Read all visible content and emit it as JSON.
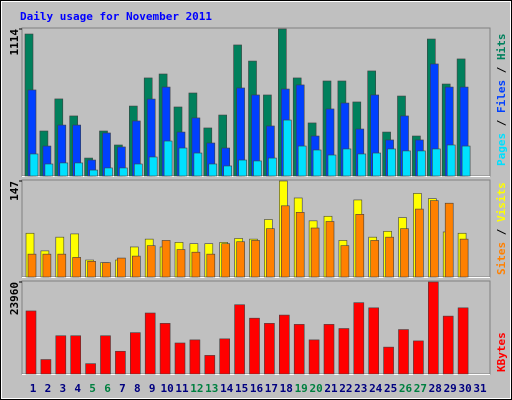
{
  "chart_data": [
    {
      "type": "bar",
      "title": "Daily usage for November 2011",
      "ylim": [
        0,
        1114
      ],
      "yticks": [
        1114
      ],
      "legend_separator": " / ",
      "series": [
        {
          "name": "Pages",
          "color": "#00e0ff",
          "values": [
            167,
            91,
            99,
            99,
            45,
            61,
            61,
            91,
            144,
            265,
            212,
            174,
            91,
            76,
            121,
            114,
            136,
            424,
            227,
            197,
            159,
            205,
            167,
            174,
            205,
            190,
            190,
            205,
            235,
            227,
            null
          ]
        },
        {
          "name": "Files",
          "color": "#0040ff",
          "values": [
            652,
            227,
            386,
            386,
            121,
            326,
            220,
            417,
            583,
            674,
            333,
            440,
            250,
            212,
            667,
            614,
            379,
            659,
            690,
            303,
            508,
            553,
            356,
            614,
            273,
            455,
            273,
            849,
            674,
            674,
            null
          ]
        },
        {
          "name": "Hits",
          "color": "#00805c",
          "values": [
            1076,
            341,
            584,
            455,
            136,
            341,
            235,
            530,
            743,
            773,
            523,
            629,
            364,
            462,
            993,
            871,
            614,
            1114,
            743,
            402,
            720,
            720,
            561,
            796,
            333,
            606,
            303,
            1038,
            697,
            887,
            null
          ]
        }
      ]
    },
    {
      "type": "bar",
      "ylim": [
        0,
        147
      ],
      "yticks": [
        147
      ],
      "legend_separator": " / ",
      "series": [
        {
          "name": "Sites",
          "color": "#ff8000",
          "values": [
            35,
            35,
            35,
            30,
            24,
            22,
            29,
            32,
            48,
            56,
            42,
            38,
            35,
            51,
            54,
            56,
            74,
            109,
            99,
            75,
            85,
            48,
            96,
            56,
            61,
            74,
            104,
            117,
            113,
            58,
            null
          ]
        },
        {
          "name": "Visits",
          "color": "#ffff00",
          "values": [
            67,
            40,
            61,
            66,
            26,
            22,
            26,
            46,
            58,
            46,
            53,
            51,
            51,
            53,
            59,
            58,
            88,
            147,
            121,
            86,
            93,
            56,
            118,
            61,
            70,
            91,
            128,
            120,
            69,
            67,
            null
          ]
        }
      ]
    },
    {
      "type": "bar",
      "ylim": [
        0,
        23960
      ],
      "yticks": [
        23960
      ],
      "categories": [
        "1",
        "2",
        "3",
        "4",
        "5",
        "6",
        "7",
        "8",
        "9",
        "10",
        "11",
        "12",
        "13",
        "14",
        "15",
        "16",
        "17",
        "18",
        "19",
        "20",
        "21",
        "22",
        "23",
        "24",
        "25",
        "26",
        "27",
        "28",
        "29",
        "30",
        "31"
      ],
      "category_colors": [
        "#000080",
        "#000080",
        "#000080",
        "#000080",
        "#008040",
        "#008040",
        "#000080",
        "#000080",
        "#000080",
        "#000080",
        "#000080",
        "#008040",
        "#008040",
        "#000080",
        "#000080",
        "#000080",
        "#000080",
        "#000080",
        "#008040",
        "#008040",
        "#000080",
        "#000080",
        "#000080",
        "#000080",
        "#000080",
        "#008040",
        "#008040",
        "#000080",
        "#000080",
        "#000080",
        "#000080"
      ],
      "series": [
        {
          "name": "KBytes",
          "color": "#ff0000",
          "values": [
            16421,
            3769,
            9960,
            9960,
            2692,
            9960,
            5922,
            10768,
            15883,
            13191,
            8076,
            8884,
            4846,
            9153,
            18036,
            14537,
            13191,
            15344,
            12922,
            8884,
            12922,
            11845,
            18575,
            17229,
            7000,
            11576,
            8614,
            23960,
            15075,
            17229,
            null
          ]
        }
      ]
    }
  ]
}
